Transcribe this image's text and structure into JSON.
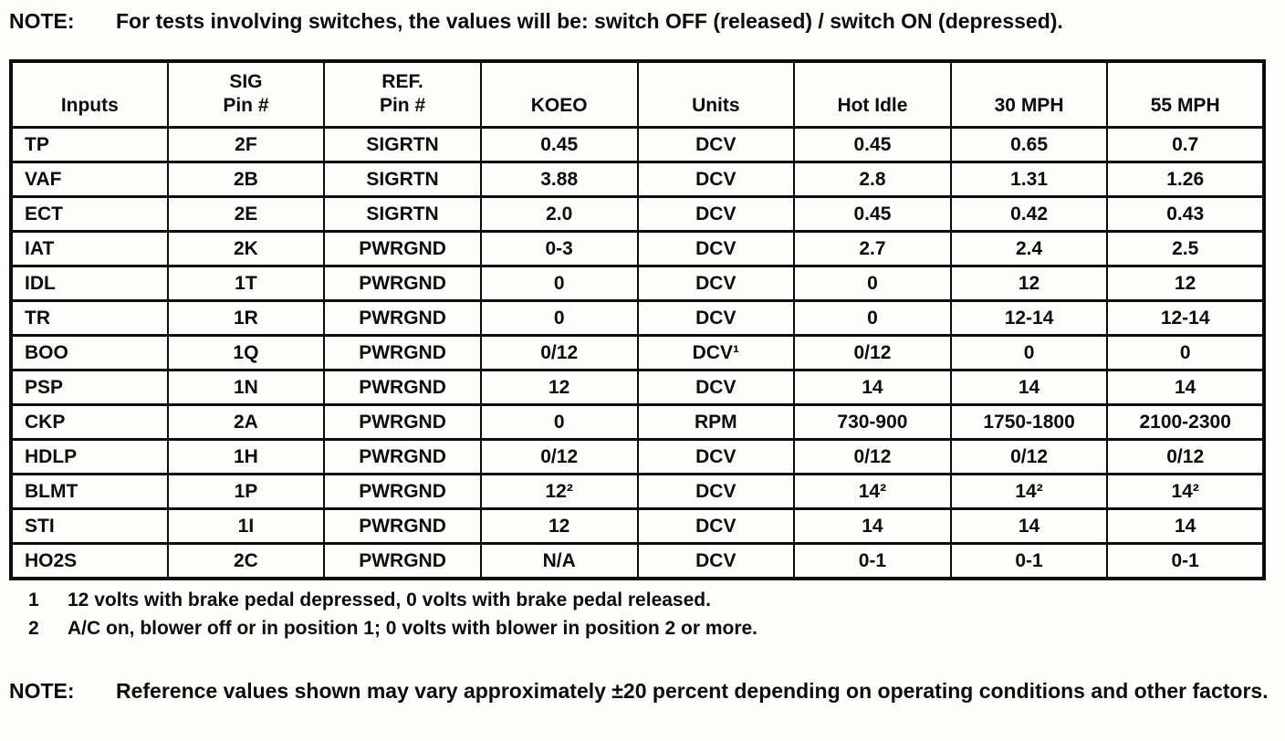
{
  "top_note": {
    "label": "NOTE:",
    "text": "For tests involving switches, the values will be: switch OFF (released) / switch ON (depressed)."
  },
  "table": {
    "headers": [
      {
        "line1": "",
        "line2": "Inputs"
      },
      {
        "line1": "SIG",
        "line2": "Pin #"
      },
      {
        "line1": "REF.",
        "line2": "Pin #"
      },
      {
        "line1": "",
        "line2": "KOEO"
      },
      {
        "line1": "",
        "line2": "Units"
      },
      {
        "line1": "",
        "line2": "Hot Idle"
      },
      {
        "line1": "",
        "line2": "30 MPH"
      },
      {
        "line1": "",
        "line2": "55 MPH"
      }
    ],
    "rows": [
      [
        "TP",
        "2F",
        "SIGRTN",
        "0.45",
        "DCV",
        "0.45",
        "0.65",
        "0.7"
      ],
      [
        "VAF",
        "2B",
        "SIGRTN",
        "3.88",
        "DCV",
        "2.8",
        "1.31",
        "1.26"
      ],
      [
        "ECT",
        "2E",
        "SIGRTN",
        "2.0",
        "DCV",
        "0.45",
        "0.42",
        "0.43"
      ],
      [
        "IAT",
        "2K",
        "PWRGND",
        "0-3",
        "DCV",
        "2.7",
        "2.4",
        "2.5"
      ],
      [
        "IDL",
        "1T",
        "PWRGND",
        "0",
        "DCV",
        "0",
        "12",
        "12"
      ],
      [
        "TR",
        "1R",
        "PWRGND",
        "0",
        "DCV",
        "0",
        "12-14",
        "12-14"
      ],
      [
        "BOO",
        "1Q",
        "PWRGND",
        "0/12",
        "DCV¹",
        "0/12",
        "0",
        "0"
      ],
      [
        "PSP",
        "1N",
        "PWRGND",
        "12",
        "DCV",
        "14",
        "14",
        "14"
      ],
      [
        "CKP",
        "2A",
        "PWRGND",
        "0",
        "RPM",
        "730-900",
        "1750-1800",
        "2100-2300"
      ],
      [
        "HDLP",
        "1H",
        "PWRGND",
        "0/12",
        "DCV",
        "0/12",
        "0/12",
        "0/12"
      ],
      [
        "BLMT",
        "1P",
        "PWRGND",
        "12²",
        "DCV",
        "14²",
        "14²",
        "14²"
      ],
      [
        "STI",
        "1I",
        "PWRGND",
        "12",
        "DCV",
        "14",
        "14",
        "14"
      ],
      [
        "HO2S",
        "2C",
        "PWRGND",
        "N/A",
        "DCV",
        "0-1",
        "0-1",
        "0-1"
      ]
    ]
  },
  "footnotes": [
    {
      "num": "1",
      "text": "12 volts with brake pedal depressed, 0 volts with brake pedal released."
    },
    {
      "num": "2",
      "text": "A/C on, blower off or in position 1; 0 volts with blower in position 2 or more."
    }
  ],
  "bottom_note": {
    "label": "NOTE:",
    "text": "Reference values shown may vary approximately ±20 percent depending on operating conditions and other factors."
  }
}
